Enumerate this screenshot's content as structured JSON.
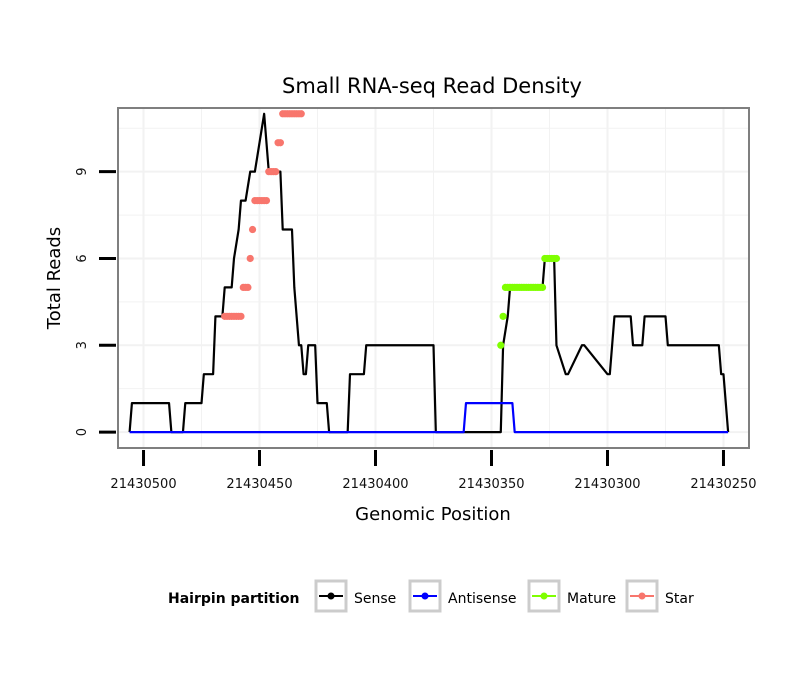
{
  "chart_data": {
    "type": "line",
    "title": "Small RNA-seq Read Density",
    "xlabel": "Genomic Position",
    "ylabel": "Total Reads",
    "x_reversed": true,
    "xlim": [
      21430511,
      21430239
    ],
    "ylim": [
      -0.55,
      11.2
    ],
    "x_ticks": [
      21430500,
      21430450,
      21430400,
      21430350,
      21430300,
      21430250
    ],
    "y_ticks": [
      0,
      3,
      6,
      9
    ],
    "grid": true,
    "legend": {
      "title": "Hairpin partition",
      "position": "bottom",
      "entries": [
        "Sense",
        "Antisense",
        "Mature",
        "Star"
      ]
    },
    "series": [
      {
        "name": "Sense",
        "color": "#000000",
        "style": "step-line",
        "x": [
          21430506,
          21430505,
          21430497,
          21430489,
          21430488,
          21430483,
          21430482,
          21430475,
          21430474,
          21430470,
          21430469,
          21430466,
          21430465,
          21430462,
          21430461,
          21430459,
          21430458,
          21430456,
          21430454,
          21430452,
          21430450,
          21430448,
          21430446,
          21430444,
          21430443,
          21430441,
          21430440,
          21430436,
          21430435,
          21430433,
          21430432,
          21430431,
          21430430,
          21430429,
          21430428,
          21430426,
          21430425,
          21430421,
          21430420,
          21430412,
          21430411,
          21430405,
          21430404,
          21430398,
          21430397,
          21430395,
          21430394,
          21430375,
          21430374,
          21430365,
          21430364,
          21430360,
          21430359,
          21430355,
          21430354,
          21430346,
          21430345,
          21430343,
          21430342,
          21430339,
          21430338,
          21430337,
          21430336,
          21430335,
          21430334,
          21430329,
          21430328,
          21430327,
          21430326,
          21430323,
          21430322,
          21430318,
          21430317,
          21430311,
          21430310,
          21430300,
          21430299,
          21430298,
          21430297,
          21430290,
          21430289,
          21430285,
          21430284,
          21430276,
          21430275,
          21430274,
          21430273,
          21430272,
          21430271,
          21430266,
          21430265,
          21430253,
          21430252,
          21430251,
          21430250,
          21430248
        ],
        "y": [
          0,
          1,
          1,
          1,
          0,
          0,
          1,
          1,
          2,
          2,
          4,
          4,
          5,
          5,
          6,
          7,
          8,
          8,
          9,
          9,
          10,
          11,
          9,
          9,
          9,
          9,
          7,
          7,
          5,
          3,
          3,
          2,
          2,
          3,
          3,
          3,
          1,
          1,
          0,
          0,
          2,
          2,
          3,
          3,
          3,
          3,
          3,
          3,
          0,
          0,
          0,
          0,
          0,
          0,
          0,
          0,
          3,
          4,
          5,
          5,
          5,
          5,
          5,
          5,
          5,
          5,
          5,
          6,
          6,
          6,
          3,
          2,
          2,
          3,
          3,
          2,
          2,
          3,
          4,
          4,
          3,
          3,
          4,
          4,
          4,
          3,
          3,
          3,
          3,
          3,
          3,
          3,
          3,
          2,
          2,
          0
        ]
      },
      {
        "name": "Antisense",
        "color": "#0000ff",
        "style": "line",
        "x": [
          21430506,
          21430362,
          21430361,
          21430341,
          21430340,
          21430248
        ],
        "y": [
          0,
          0,
          1,
          1,
          0,
          0
        ]
      },
      {
        "name": "Mature",
        "color": "#7fff00",
        "style": "points",
        "x": [
          21430346,
          21430345,
          21430344,
          21430343,
          21430342,
          21430341,
          21430340,
          21430339,
          21430338,
          21430337,
          21430336,
          21430335,
          21430334,
          21430333,
          21430332,
          21430331,
          21430330,
          21430329,
          21430328,
          21430327,
          21430326,
          21430325,
          21430324,
          21430323,
          21430322
        ],
        "y": [
          3,
          4,
          5,
          5,
          5,
          5,
          5,
          5,
          5,
          5,
          5,
          5,
          5,
          5,
          5,
          5,
          5,
          5,
          5,
          6,
          6,
          6,
          6,
          6,
          6
        ]
      },
      {
        "name": "Star",
        "color": "#f8766d",
        "style": "points",
        "x": [
          21430465,
          21430464,
          21430463,
          21430462,
          21430461,
          21430460,
          21430459,
          21430458,
          21430457,
          21430456,
          21430455,
          21430454,
          21430453,
          21430452,
          21430451,
          21430450,
          21430449,
          21430448,
          21430447,
          21430446,
          21430445,
          21430444,
          21430443,
          21430442,
          21430441,
          21430440,
          21430439,
          21430438,
          21430437,
          21430436,
          21430435,
          21430434,
          21430433,
          21430432
        ],
        "y": [
          4,
          4,
          4,
          4,
          4,
          4,
          4,
          4,
          5,
          5,
          5,
          6,
          7,
          8,
          8,
          8,
          8,
          8,
          8,
          9,
          9,
          9,
          9,
          10,
          10,
          11,
          11,
          11,
          11,
          11,
          11,
          11,
          11,
          11
        ]
      }
    ]
  },
  "colors": {
    "panel_border": "#7f7f7f",
    "grid": "#f2f2f2",
    "legend_key_border": "#cccccc"
  }
}
